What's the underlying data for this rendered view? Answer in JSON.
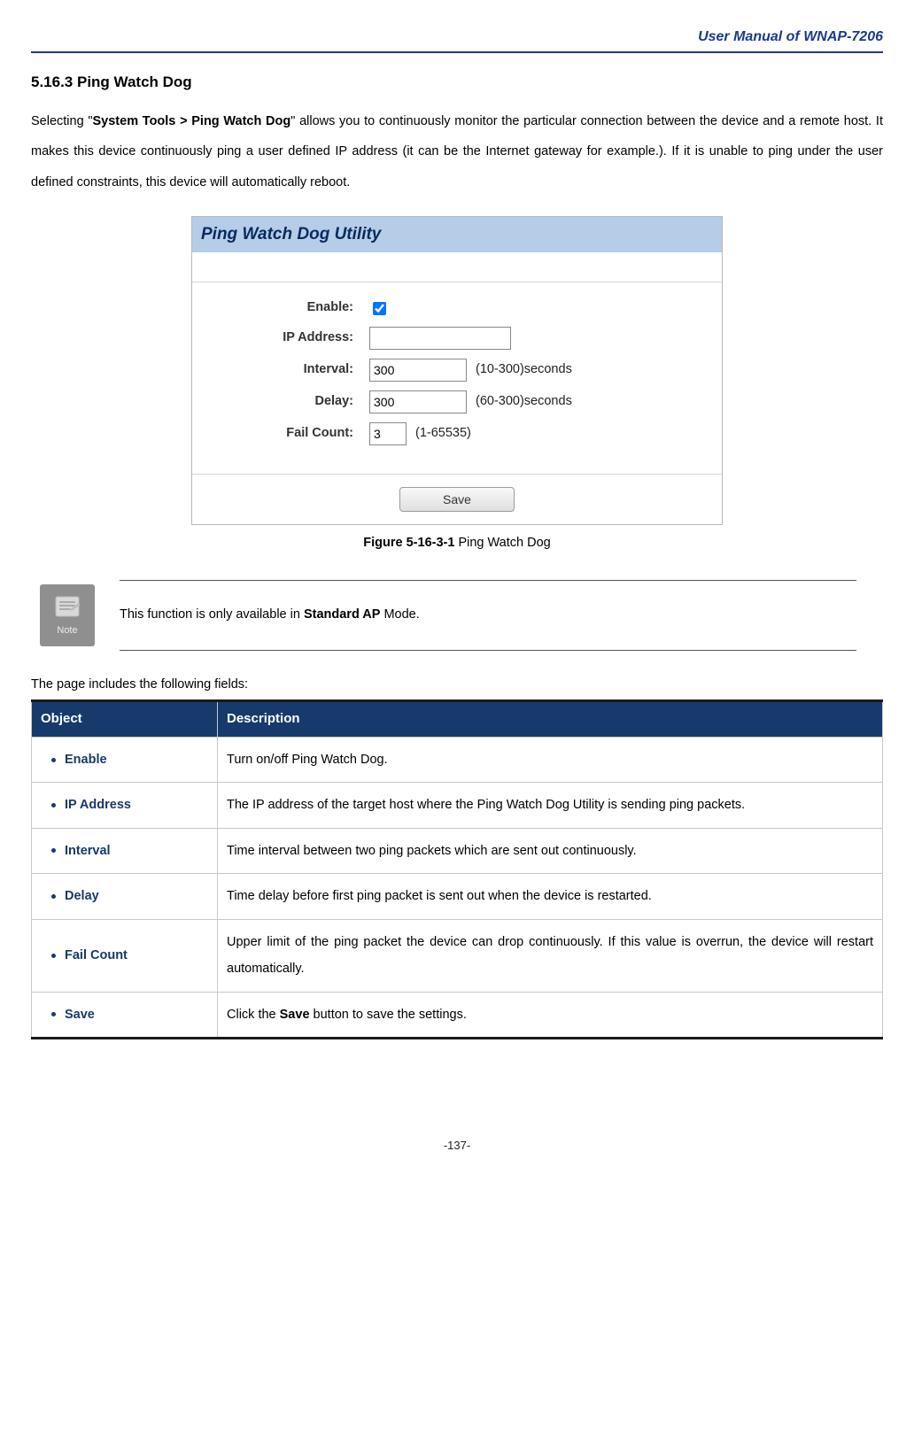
{
  "header": {
    "title": "User Manual of WNAP-7206"
  },
  "section": {
    "heading": "5.16.3 Ping Watch Dog"
  },
  "intro": {
    "pre": "Selecting \"",
    "bold": "System Tools > Ping Watch Dog",
    "post": "\" allows you to continuously monitor the particular connection between the device and a remote host. It makes this device continuously ping a user defined IP address (it can be the Internet gateway for example.). If it is unable to ping under the user defined constraints, this device will automatically reboot."
  },
  "utility": {
    "title": "Ping Watch Dog Utility",
    "fields": {
      "enable": {
        "label": "Enable:"
      },
      "ip": {
        "label": "IP Address:",
        "value": ""
      },
      "interval": {
        "label": "Interval:",
        "value": "300",
        "hint": "(10-300)seconds"
      },
      "delay": {
        "label": "Delay:",
        "value": "300",
        "hint": "(60-300)seconds"
      },
      "failcount": {
        "label": "Fail Count:",
        "value": "3",
        "hint": "(1-65535)"
      }
    },
    "save_label": "Save"
  },
  "figure": {
    "label": "Figure 5-16-3-1",
    "text": " Ping Watch Dog"
  },
  "note": {
    "icon_label": "Note",
    "pre": "This function is only available in ",
    "bold": "Standard AP",
    "post": " Mode."
  },
  "fields_intro": "The page includes the following fields:",
  "table": {
    "headers": {
      "object": "Object",
      "description": "Description"
    },
    "rows": [
      {
        "object": "Enable",
        "desc_plain": "Turn on/off Ping Watch Dog.",
        "justify": false
      },
      {
        "object": "IP Address",
        "desc_plain": "The IP address of the target host where the Ping Watch Dog Utility is sending ping packets.",
        "justify": false
      },
      {
        "object": "Interval",
        "desc_plain": "Time interval between two ping packets which are sent out continuously.",
        "justify": true
      },
      {
        "object": "Delay",
        "desc_plain": "Time delay before first ping packet is sent out when the device is restarted.",
        "justify": true
      },
      {
        "object": "Fail Count",
        "desc_plain": "Upper limit of the ping packet the device can drop continuously. If this value is overrun, the device will restart automatically.",
        "justify": true
      },
      {
        "object": "Save",
        "desc_pre": "Click the ",
        "desc_bold": "Save",
        "desc_post": " button to save the settings.",
        "justify": false
      }
    ]
  },
  "page_number": "-137-",
  "colors": {
    "header_accent": "#1a3a8a",
    "utility_titlebar_bg": "#b5cde6",
    "utility_title_text": "#082a5e",
    "table_header_bg": "#163a6c",
    "table_header_text": "#ffffff",
    "table_border": "#c8c8c8",
    "note_icon_bg": "#8f8f8f"
  }
}
